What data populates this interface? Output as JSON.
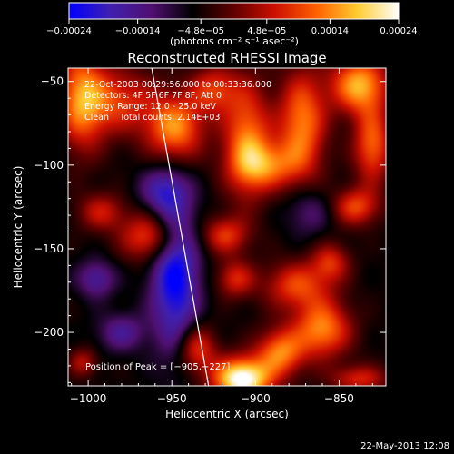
{
  "chart_data": {
    "type": "heatmap",
    "title": "Reconstructed RHESSI Image",
    "xlabel": "Heliocentric X (arcsec)",
    "ylabel": "Heliocentric Y (arcsec)",
    "xlim": [
      -1012,
      -822
    ],
    "ylim": [
      -232,
      -42
    ],
    "xticks": [
      -1000,
      -950,
      -900,
      -850
    ],
    "xtick_labels": [
      "−1000",
      "−950",
      "−900",
      "−850"
    ],
    "yticks": [
      -50,
      -100,
      -150,
      -200
    ],
    "ytick_labels": [
      "−50",
      "−100",
      "−150",
      "−200"
    ],
    "colorbar": {
      "range": [
        -0.00024,
        0.00024
      ],
      "ticks": [
        -0.00024,
        -0.00014,
        -4.8e-05,
        4.8e-05,
        0.00014,
        0.00024
      ],
      "tick_labels": [
        "−0.00024",
        "−0.00014",
        "−4.8e−05",
        "4.8e−05",
        "0.00014",
        "0.00024"
      ],
      "unit_label": "(photons cm⁻² s⁻¹ asec⁻²)",
      "stops": [
        "#0000ff",
        "#4020b0",
        "#501070",
        "#000000",
        "#600000",
        "#cc1000",
        "#ff6000",
        "#ffcc30",
        "#ffffff"
      ]
    },
    "annotations": [
      "22-Oct-2003 00:29:56.000 to 00:33:36.000",
      "Detectors: 4F 5F 6F 7F 8F, Att 0",
      "Energy Range: 12.0 - 25.0 keV",
      "Clean    Total counts: 2.14E+03"
    ],
    "peak_label": "Position of Peak = [−905,−227]",
    "peak": [
      -905,
      -227
    ],
    "limb_line": [
      [
        -962,
        -42
      ],
      [
        -928,
        -232
      ]
    ],
    "field_level": 0.22,
    "sources": [
      {
        "x": -1004,
        "y": -60,
        "sx": 10,
        "sy": 22,
        "v": 0.75
      },
      {
        "x": -982,
        "y": -62,
        "sx": 16,
        "sy": 14,
        "v": 0.55
      },
      {
        "x": -948,
        "y": -78,
        "sx": 12,
        "sy": 14,
        "v": 0.82
      },
      {
        "x": -925,
        "y": -55,
        "sx": 10,
        "sy": 10,
        "v": 0.55
      },
      {
        "x": -905,
        "y": -85,
        "sx": 10,
        "sy": 24,
        "v": 0.75
      },
      {
        "x": -892,
        "y": -100,
        "sx": 14,
        "sy": 10,
        "v": 0.6
      },
      {
        "x": -872,
        "y": -75,
        "sx": 10,
        "sy": 22,
        "v": 0.78
      },
      {
        "x": -838,
        "y": -52,
        "sx": 12,
        "sy": 12,
        "v": 0.9
      },
      {
        "x": -830,
        "y": -88,
        "sx": 8,
        "sy": 16,
        "v": 0.7
      },
      {
        "x": -840,
        "y": -125,
        "sx": 10,
        "sy": 8,
        "v": 0.6
      },
      {
        "x": -992,
        "y": -128,
        "sx": 10,
        "sy": 8,
        "v": 0.45
      },
      {
        "x": -963,
        "y": -143,
        "sx": 12,
        "sy": 10,
        "v": 0.68
      },
      {
        "x": -918,
        "y": -142,
        "sx": 10,
        "sy": 8,
        "v": 0.55
      },
      {
        "x": -912,
        "y": -168,
        "sx": 8,
        "sy": 8,
        "v": 0.5
      },
      {
        "x": -875,
        "y": -172,
        "sx": 14,
        "sy": 10,
        "v": 0.6
      },
      {
        "x": -855,
        "y": -158,
        "sx": 8,
        "sy": 8,
        "v": 0.5
      },
      {
        "x": -860,
        "y": -198,
        "sx": 12,
        "sy": 12,
        "v": 0.8
      },
      {
        "x": -885,
        "y": -212,
        "sx": 10,
        "sy": 10,
        "v": 0.75
      },
      {
        "x": -935,
        "y": -210,
        "sx": 8,
        "sy": 10,
        "v": 0.6
      },
      {
        "x": -908,
        "y": -228,
        "sx": 12,
        "sy": 9,
        "v": 1.3
      },
      {
        "x": -1003,
        "y": -218,
        "sx": 6,
        "sy": 6,
        "v": 0.4
      },
      {
        "x": -838,
        "y": -228,
        "sx": 12,
        "sy": 6,
        "v": 0.5
      },
      {
        "x": -948,
        "y": -165,
        "sx": 10,
        "sy": 32,
        "v": -0.8
      },
      {
        "x": -955,
        "y": -115,
        "sx": 10,
        "sy": 10,
        "v": -0.45
      },
      {
        "x": -995,
        "y": -168,
        "sx": 8,
        "sy": 8,
        "v": -0.45
      },
      {
        "x": -980,
        "y": -200,
        "sx": 10,
        "sy": 8,
        "v": -0.4
      },
      {
        "x": -868,
        "y": -128,
        "sx": 10,
        "sy": 10,
        "v": -0.3
      }
    ]
  },
  "footer": {
    "timestamp": "22-May-2013 12:08"
  }
}
